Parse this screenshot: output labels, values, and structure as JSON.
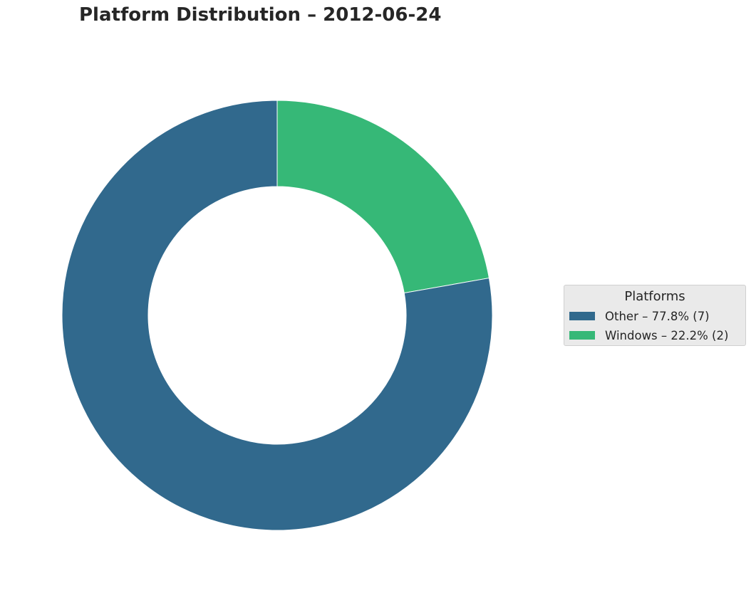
{
  "chart_data": {
    "type": "pie",
    "style": "donut",
    "title": "Platform Distribution – 2012-06-24",
    "start_angle_deg": 90,
    "direction": "clockwise",
    "slices": [
      {
        "name": "Windows",
        "value": 2,
        "percent": 22.2,
        "color": "#36b877"
      },
      {
        "name": "Other",
        "value": 7,
        "percent": 77.8,
        "color": "#31698d"
      }
    ],
    "legend": {
      "title": "Platforms",
      "placement": "right",
      "entries": [
        {
          "label": "Other – 77.8% (7)",
          "color": "#31698d"
        },
        {
          "label": "Windows – 22.2% (2)",
          "color": "#36b877"
        }
      ]
    }
  }
}
